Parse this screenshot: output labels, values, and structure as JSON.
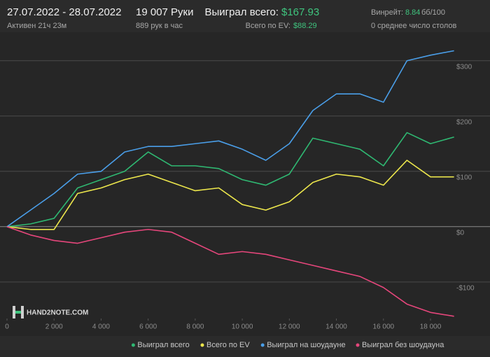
{
  "header": {
    "date_range": "27.07.2022 - 28.07.2022",
    "active": "Активен 21ч 23м",
    "hands": "19 007 Руки",
    "hands_per_hour": "889 рук в час",
    "won_label": "Выиграл всего:",
    "won_value": "$167.93",
    "ev_label": "Всего по EV:",
    "ev_value": "$88.29",
    "winrate_label": "Винрейт:",
    "winrate_value": "8.84",
    "winrate_unit": "бб/100",
    "tables": "0 среднее число столов"
  },
  "watermark": "HAND2NOTE.COM",
  "chart_data": {
    "type": "line",
    "x": [
      0,
      1000,
      2000,
      3000,
      4000,
      5000,
      6000,
      7000,
      8000,
      9000,
      10000,
      11000,
      12000,
      13000,
      14000,
      15000,
      16000,
      17000,
      18000,
      19000
    ],
    "series": [
      {
        "name": "Выиграл всего",
        "color": "#2fb872",
        "values": [
          0,
          5,
          15,
          70,
          85,
          100,
          135,
          110,
          110,
          105,
          85,
          75,
          95,
          160,
          150,
          140,
          110,
          170,
          150,
          162
        ]
      },
      {
        "name": "Всего по EV",
        "color": "#ece64c",
        "values": [
          0,
          -5,
          -5,
          60,
          70,
          85,
          95,
          80,
          65,
          70,
          40,
          30,
          45,
          80,
          95,
          90,
          75,
          120,
          90,
          90
        ]
      },
      {
        "name": "Выиграл на шоудауне",
        "color": "#4a9ee8",
        "values": [
          0,
          30,
          60,
          95,
          100,
          135,
          145,
          145,
          150,
          155,
          140,
          120,
          150,
          210,
          240,
          240,
          225,
          300,
          310,
          318
        ]
      },
      {
        "name": "Выиграл без шоудауна",
        "color": "#e5467b",
        "values": [
          0,
          -15,
          -25,
          -30,
          -20,
          -10,
          -5,
          -10,
          -30,
          -50,
          -45,
          -50,
          -60,
          -70,
          -80,
          -90,
          -110,
          -140,
          -155,
          -162
        ]
      }
    ],
    "xlim": [
      0,
      19050
    ],
    "ylim": [
      -166,
      349
    ],
    "xticks": [
      0,
      {
        "value": 2000,
        "label": "2 000"
      },
      {
        "value": 4000,
        "label": "4 000"
      },
      {
        "value": 6000,
        "label": "6 000"
      },
      {
        "value": 8000,
        "label": "8 000"
      },
      {
        "value": 10000,
        "label": "10 000"
      },
      {
        "value": 12000,
        "label": "12 000"
      },
      {
        "value": 14000,
        "label": "14 000"
      },
      {
        "value": 16000,
        "label": "16 000"
      },
      {
        "value": 18000,
        "label": "18 000"
      }
    ],
    "yticks": [
      {
        "value": -100,
        "label": "-$100"
      },
      {
        "value": 0,
        "label": "$0"
      },
      {
        "value": 100,
        "label": "$100"
      },
      {
        "value": 200,
        "label": "$200"
      },
      {
        "value": 300,
        "label": "$300"
      }
    ],
    "grid": true,
    "legend": "bottom-right"
  }
}
